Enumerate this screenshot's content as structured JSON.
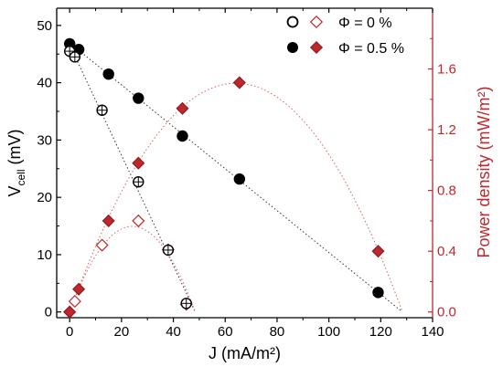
{
  "chart_data": {
    "type": "scatter",
    "xlabel": "J (mA/m²)",
    "ylabel_left": "Vcell (mV)",
    "ylabel_right": "Power density (mW/m²)",
    "xlim": [
      -5,
      140
    ],
    "ylim_left": [
      -1,
      53
    ],
    "ylim_right": [
      -0.0377,
      2.0
    ],
    "x_ticks": [
      0,
      20,
      40,
      60,
      80,
      100,
      120,
      140
    ],
    "y_left_ticks": [
      0,
      10,
      20,
      30,
      40,
      50
    ],
    "y_right_ticks": [
      0.0,
      0.4,
      0.8,
      1.2,
      1.6
    ],
    "y_right_tick_labels": [
      "0.0",
      "0.4",
      "0.8",
      "1.2",
      "1.6"
    ],
    "legend": {
      "placement": "top-right",
      "entries": [
        {
          "label": "Φ = 0 %"
        },
        {
          "label": "Φ = 0.5 %"
        }
      ]
    },
    "colors": {
      "voltage": "#000000",
      "power": "#c0272d",
      "fit_voltage": "#333333",
      "fit_power": "#e06060"
    },
    "series": [
      {
        "name": "Φ = 0 %",
        "axis": "left",
        "marker": "circle-plus-open",
        "x": [
          0,
          2,
          12.5,
          26.5,
          38,
          45
        ],
        "y": [
          45.5,
          44.5,
          35.2,
          22.7,
          10.8,
          1.5
        ]
      },
      {
        "name": "Φ = 0 %",
        "axis": "right",
        "marker": "diamond-open",
        "x": [
          0,
          2,
          12.5,
          26.5,
          38,
          45
        ],
        "y": [
          0.0,
          0.07,
          0.44,
          0.6,
          0.41,
          0.05
        ]
      },
      {
        "name": "Φ = 0.5 %",
        "axis": "left",
        "marker": "circle-filled",
        "x": [
          0,
          3.5,
          15,
          26.5,
          43.5,
          65.5,
          119
        ],
        "y": [
          46.8,
          45.8,
          41.5,
          37.3,
          30.7,
          23.2,
          3.4
        ]
      },
      {
        "name": "Φ = 0.5 %",
        "axis": "right",
        "marker": "diamond-filled",
        "x": [
          0,
          3.5,
          15,
          26.5,
          43.5,
          65.5,
          119
        ],
        "y": [
          0.0,
          0.15,
          0.6,
          0.98,
          1.34,
          1.51,
          0.4
        ]
      }
    ]
  }
}
